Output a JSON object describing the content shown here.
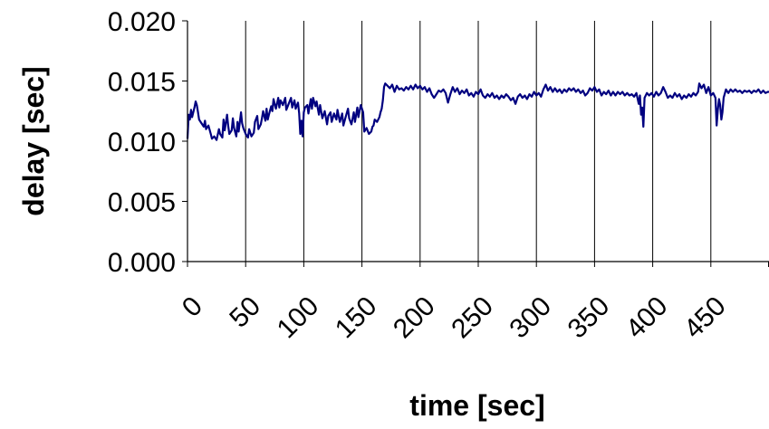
{
  "chart_data": {
    "type": "line",
    "title": "",
    "xlabel": "time [sec]",
    "ylabel": "delay [sec]",
    "xlim": [
      0,
      500
    ],
    "ylim": [
      0.0,
      0.02
    ],
    "x_ticks": [
      0,
      50,
      100,
      150,
      200,
      250,
      300,
      350,
      400,
      450
    ],
    "x_tick_labels": [
      "0",
      "50",
      "100",
      "150",
      "200",
      "250",
      "300",
      "350",
      "400",
      "450"
    ],
    "y_ticks": [
      0.0,
      0.005,
      0.01,
      0.015,
      0.02
    ],
    "y_tick_labels": [
      "0.000",
      "0.005",
      "0.010",
      "0.015",
      "0.020"
    ],
    "grid": "vertical",
    "legend": "none",
    "colors": {
      "line": "#000080",
      "grid": "#000000",
      "axis": "#000000"
    },
    "series": [
      {
        "values": [
          [
            0,
            0.0102
          ],
          [
            1,
            0.0122
          ],
          [
            2,
            0.0118
          ],
          [
            3,
            0.0126
          ],
          [
            4,
            0.012
          ],
          [
            6,
            0.0128
          ],
          [
            7,
            0.0133
          ],
          [
            8,
            0.013
          ],
          [
            9,
            0.0124
          ],
          [
            10,
            0.0118
          ],
          [
            12,
            0.0115
          ],
          [
            14,
            0.0112
          ],
          [
            15,
            0.0117
          ],
          [
            16,
            0.011
          ],
          [
            18,
            0.0113
          ],
          [
            20,
            0.0106
          ],
          [
            21,
            0.0102
          ],
          [
            23,
            0.0104
          ],
          [
            25,
            0.0101
          ],
          [
            27,
            0.011
          ],
          [
            28,
            0.0106
          ],
          [
            30,
            0.0103
          ],
          [
            31,
            0.0118
          ],
          [
            32,
            0.0109
          ],
          [
            34,
            0.0122
          ],
          [
            35,
            0.0113
          ],
          [
            36,
            0.0106
          ],
          [
            38,
            0.0109
          ],
          [
            39,
            0.0119
          ],
          [
            40,
            0.0111
          ],
          [
            42,
            0.0104
          ],
          [
            43,
            0.0116
          ],
          [
            44,
            0.0108
          ],
          [
            46,
            0.0124
          ],
          [
            47,
            0.0115
          ],
          [
            48,
            0.0111
          ],
          [
            50,
            0.0106
          ],
          [
            52,
            0.0103
          ],
          [
            53,
            0.011
          ],
          [
            55,
            0.0104
          ],
          [
            57,
            0.0107
          ],
          [
            58,
            0.0116
          ],
          [
            60,
            0.0121
          ],
          [
            61,
            0.011
          ],
          [
            63,
            0.0114
          ],
          [
            64,
            0.0119
          ],
          [
            65,
            0.0125
          ],
          [
            67,
            0.0117
          ],
          [
            68,
            0.0127
          ],
          [
            69,
            0.0118
          ],
          [
            70,
            0.0122
          ],
          [
            72,
            0.0129
          ],
          [
            73,
            0.0125
          ],
          [
            74,
            0.0135
          ],
          [
            76,
            0.0127
          ],
          [
            78,
            0.0136
          ],
          [
            79,
            0.0128
          ],
          [
            80,
            0.0134
          ],
          [
            82,
            0.013
          ],
          [
            84,
            0.0136
          ],
          [
            85,
            0.0126
          ],
          [
            87,
            0.0131
          ],
          [
            89,
            0.0136
          ],
          [
            90,
            0.0128
          ],
          [
            92,
            0.0134
          ],
          [
            93,
            0.0127
          ],
          [
            95,
            0.0132
          ],
          [
            96,
            0.0123
          ],
          [
            97,
            0.0106
          ],
          [
            98,
            0.0117
          ],
          [
            99,
            0.0104
          ],
          [
            100,
            0.0124
          ],
          [
            101,
            0.0128
          ],
          [
            103,
            0.013
          ],
          [
            104,
            0.0123
          ],
          [
            106,
            0.0135
          ],
          [
            107,
            0.0127
          ],
          [
            108,
            0.0136
          ],
          [
            110,
            0.0129
          ],
          [
            111,
            0.0133
          ],
          [
            113,
            0.0122
          ],
          [
            114,
            0.013
          ],
          [
            116,
            0.0119
          ],
          [
            118,
            0.0125
          ],
          [
            120,
            0.0114
          ],
          [
            121,
            0.0121
          ],
          [
            123,
            0.0124
          ],
          [
            124,
            0.0116
          ],
          [
            126,
            0.0123
          ],
          [
            128,
            0.0118
          ],
          [
            129,
            0.0126
          ],
          [
            131,
            0.0116
          ],
          [
            133,
            0.0123
          ],
          [
            134,
            0.0113
          ],
          [
            136,
            0.012
          ],
          [
            138,
            0.0127
          ],
          [
            139,
            0.0119
          ],
          [
            141,
            0.0114
          ],
          [
            143,
            0.0124
          ],
          [
            144,
            0.0116
          ],
          [
            146,
            0.0128
          ],
          [
            147,
            0.012
          ],
          [
            149,
            0.013
          ],
          [
            151,
            0.0124
          ],
          [
            152,
            0.0108
          ],
          [
            154,
            0.0111
          ],
          [
            156,
            0.0106
          ],
          [
            158,
            0.0108
          ],
          [
            159,
            0.0112
          ],
          [
            160,
            0.0113
          ],
          [
            161,
            0.0118
          ],
          [
            163,
            0.0116
          ],
          [
            165,
            0.012
          ],
          [
            166,
            0.0124
          ],
          [
            167,
            0.0127
          ],
          [
            168,
            0.0134
          ],
          [
            169,
            0.0145
          ],
          [
            170,
            0.0148
          ],
          [
            172,
            0.0146
          ],
          [
            174,
            0.0144
          ],
          [
            176,
            0.0147
          ],
          [
            178,
            0.0141
          ],
          [
            180,
            0.0146
          ],
          [
            182,
            0.0143
          ],
          [
            184,
            0.0144
          ],
          [
            186,
            0.0142
          ],
          [
            188,
            0.0145
          ],
          [
            190,
            0.0143
          ],
          [
            192,
            0.0146
          ],
          [
            194,
            0.0143
          ],
          [
            196,
            0.0147
          ],
          [
            198,
            0.0144
          ],
          [
            200,
            0.0146
          ],
          [
            202,
            0.0143
          ],
          [
            204,
            0.0145
          ],
          [
            206,
            0.0141
          ],
          [
            208,
            0.0144
          ],
          [
            210,
            0.0139
          ],
          [
            212,
            0.0136
          ],
          [
            214,
            0.0139
          ],
          [
            216,
            0.0142
          ],
          [
            218,
            0.0141
          ],
          [
            220,
            0.0143
          ],
          [
            222,
            0.014
          ],
          [
            224,
            0.0132
          ],
          [
            226,
            0.0139
          ],
          [
            228,
            0.0145
          ],
          [
            230,
            0.0141
          ],
          [
            232,
            0.0144
          ],
          [
            234,
            0.0139
          ],
          [
            236,
            0.0142
          ],
          [
            238,
            0.014
          ],
          [
            240,
            0.0143
          ],
          [
            242,
            0.0138
          ],
          [
            244,
            0.014
          ],
          [
            246,
            0.0137
          ],
          [
            248,
            0.0141
          ],
          [
            250,
            0.0139
          ],
          [
            252,
            0.0143
          ],
          [
            254,
            0.0138
          ],
          [
            256,
            0.0136
          ],
          [
            258,
            0.0139
          ],
          [
            260,
            0.0137
          ],
          [
            262,
            0.014
          ],
          [
            264,
            0.0136
          ],
          [
            266,
            0.0138
          ],
          [
            268,
            0.0135
          ],
          [
            270,
            0.0138
          ],
          [
            272,
            0.0136
          ],
          [
            274,
            0.0139
          ],
          [
            276,
            0.0137
          ],
          [
            278,
            0.0134
          ],
          [
            280,
            0.0136
          ],
          [
            282,
            0.0131
          ],
          [
            284,
            0.0137
          ],
          [
            286,
            0.0139
          ],
          [
            288,
            0.0136
          ],
          [
            290,
            0.0138
          ],
          [
            292,
            0.0135
          ],
          [
            294,
            0.0139
          ],
          [
            296,
            0.0137
          ],
          [
            298,
            0.0141
          ],
          [
            300,
            0.0138
          ],
          [
            302,
            0.014
          ],
          [
            304,
            0.0137
          ],
          [
            306,
            0.0143
          ],
          [
            308,
            0.0147
          ],
          [
            310,
            0.0142
          ],
          [
            312,
            0.0145
          ],
          [
            314,
            0.0141
          ],
          [
            316,
            0.0144
          ],
          [
            318,
            0.0141
          ],
          [
            320,
            0.0143
          ],
          [
            322,
            0.014
          ],
          [
            324,
            0.0143
          ],
          [
            326,
            0.0141
          ],
          [
            328,
            0.0144
          ],
          [
            330,
            0.0142
          ],
          [
            332,
            0.0144
          ],
          [
            334,
            0.0141
          ],
          [
            336,
            0.0143
          ],
          [
            338,
            0.014
          ],
          [
            340,
            0.0142
          ],
          [
            342,
            0.0138
          ],
          [
            344,
            0.014
          ],
          [
            346,
            0.0144
          ],
          [
            348,
            0.0142
          ],
          [
            350,
            0.0145
          ],
          [
            352,
            0.0141
          ],
          [
            354,
            0.0143
          ],
          [
            356,
            0.0138
          ],
          [
            358,
            0.0141
          ],
          [
            360,
            0.0139
          ],
          [
            362,
            0.0142
          ],
          [
            364,
            0.0138
          ],
          [
            366,
            0.0141
          ],
          [
            368,
            0.0138
          ],
          [
            370,
            0.0141
          ],
          [
            372,
            0.0139
          ],
          [
            374,
            0.0141
          ],
          [
            376,
            0.0138
          ],
          [
            378,
            0.014
          ],
          [
            380,
            0.0138
          ],
          [
            382,
            0.0139
          ],
          [
            384,
            0.0137
          ],
          [
            386,
            0.014
          ],
          [
            388,
            0.0131
          ],
          [
            389,
            0.0138
          ],
          [
            390,
            0.0122
          ],
          [
            391,
            0.0128
          ],
          [
            392,
            0.0112
          ],
          [
            393,
            0.0136
          ],
          [
            395,
            0.014
          ],
          [
            397,
            0.0138
          ],
          [
            399,
            0.014
          ],
          [
            401,
            0.0137
          ],
          [
            403,
            0.0141
          ],
          [
            405,
            0.0138
          ],
          [
            407,
            0.014
          ],
          [
            409,
            0.0145
          ],
          [
            411,
            0.0141
          ],
          [
            413,
            0.0136
          ],
          [
            415,
            0.0138
          ],
          [
            417,
            0.0136
          ],
          [
            419,
            0.014
          ],
          [
            421,
            0.0137
          ],
          [
            423,
            0.0139
          ],
          [
            425,
            0.0135
          ],
          [
            427,
            0.0138
          ],
          [
            429,
            0.0136
          ],
          [
            431,
            0.0139
          ],
          [
            433,
            0.0137
          ],
          [
            435,
            0.014
          ],
          [
            437,
            0.0138
          ],
          [
            439,
            0.0141
          ],
          [
            440,
            0.0148
          ],
          [
            442,
            0.0144
          ],
          [
            444,
            0.0147
          ],
          [
            446,
            0.014
          ],
          [
            448,
            0.0145
          ],
          [
            450,
            0.0138
          ],
          [
            452,
            0.014
          ],
          [
            454,
            0.0136
          ],
          [
            455,
            0.0113
          ],
          [
            456,
            0.0126
          ],
          [
            457,
            0.0135
          ],
          [
            458,
            0.013
          ],
          [
            459,
            0.0118
          ],
          [
            460,
            0.0124
          ],
          [
            461,
            0.0136
          ],
          [
            463,
            0.0143
          ],
          [
            465,
            0.014
          ],
          [
            467,
            0.0143
          ],
          [
            469,
            0.0141
          ],
          [
            471,
            0.0143
          ],
          [
            473,
            0.0141
          ],
          [
            475,
            0.0142
          ],
          [
            477,
            0.014
          ],
          [
            479,
            0.0142
          ],
          [
            481,
            0.0141
          ],
          [
            483,
            0.0142
          ],
          [
            485,
            0.014
          ],
          [
            487,
            0.0142
          ],
          [
            489,
            0.0141
          ],
          [
            491,
            0.0143
          ],
          [
            493,
            0.014
          ],
          [
            495,
            0.0142
          ],
          [
            497,
            0.014
          ],
          [
            499,
            0.0141
          ],
          [
            500,
            0.0141
          ]
        ]
      }
    ]
  }
}
